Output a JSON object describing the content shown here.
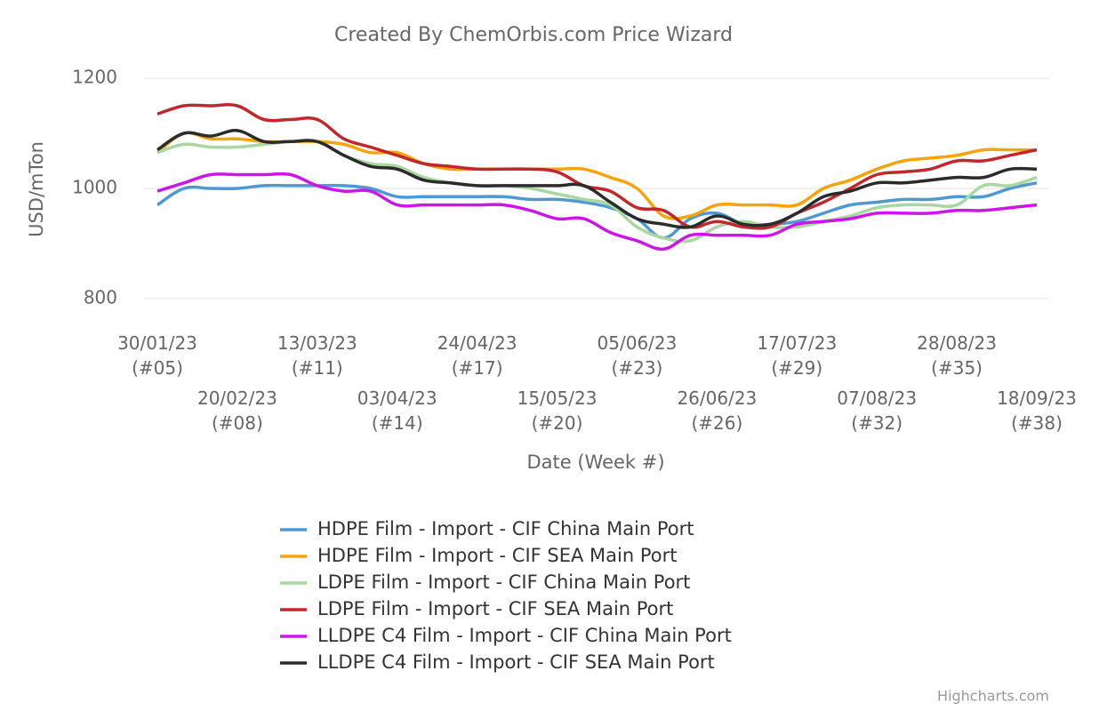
{
  "chart_data": {
    "type": "line",
    "title": "Created By ChemOrbis.com Price Wizard",
    "x_label": "Date (Week #)",
    "y_label": "USD/mTon",
    "credits": "Highcharts.com",
    "categories": [
      "30/01/23\n(#05)",
      null,
      null,
      "20/02/23\n(#08)",
      null,
      null,
      "13/03/23\n(#11)",
      null,
      null,
      "03/04/23\n(#14)",
      null,
      null,
      "24/04/23\n(#17)",
      null,
      null,
      "15/05/23\n(#20)",
      null,
      null,
      "05/06/23\n(#23)",
      null,
      null,
      "26/06/23\n(#26)",
      null,
      null,
      "17/07/23\n(#29)",
      null,
      null,
      "07/08/23\n(#32)",
      null,
      null,
      "28/08/23\n(#35)",
      null,
      null,
      "18/09/23\n(#38)"
    ],
    "ylim": [
      750,
      1200
    ],
    "yticks": [
      800,
      1000,
      1200
    ],
    "grid": true,
    "legend": "bottom",
    "series": [
      {
        "name": "HDPE Film - Import - CIF China Main Port",
        "color": "#4f98d3",
        "values": [
          970,
          1000,
          1000,
          1000,
          1005,
          1005,
          1005,
          1005,
          1000,
          985,
          985,
          985,
          985,
          985,
          980,
          980,
          975,
          965,
          945,
          910,
          945,
          955,
          935,
          935,
          940,
          955,
          970,
          975,
          980,
          980,
          985,
          985,
          1000,
          1010
        ]
      },
      {
        "name": "HDPE Film - Import - CIF SEA Main Port",
        "color": "#f5a40c",
        "values": [
          1065,
          1100,
          1090,
          1090,
          1085,
          1085,
          1085,
          1080,
          1065,
          1065,
          1045,
          1035,
          1035,
          1035,
          1035,
          1035,
          1035,
          1020,
          1000,
          950,
          950,
          970,
          970,
          970,
          970,
          1000,
          1015,
          1035,
          1050,
          1055,
          1060,
          1070,
          1070,
          1070
        ]
      },
      {
        "name": "LDPE Film - Import - CIF China Main Port",
        "color": "#a8d8a0",
        "values": [
          1065,
          1080,
          1075,
          1075,
          1080,
          1085,
          1085,
          1060,
          1045,
          1040,
          1020,
          1010,
          1005,
          1005,
          1000,
          990,
          980,
          970,
          930,
          910,
          905,
          930,
          940,
          930,
          930,
          940,
          950,
          965,
          970,
          970,
          970,
          1005,
          1005,
          1020
        ]
      },
      {
        "name": "LDPE Film - Import - CIF SEA Main Port",
        "color": "#c0282d",
        "values": [
          1135,
          1150,
          1150,
          1150,
          1125,
          1125,
          1125,
          1090,
          1075,
          1060,
          1045,
          1040,
          1035,
          1035,
          1035,
          1030,
          1005,
          995,
          965,
          960,
          930,
          940,
          930,
          930,
          955,
          975,
          1000,
          1025,
          1030,
          1035,
          1050,
          1050,
          1060,
          1070
        ]
      },
      {
        "name": "LLDPE C4 Film - Import - CIF China Main Port",
        "color": "#cc16e8",
        "values": [
          995,
          1010,
          1025,
          1025,
          1025,
          1025,
          1005,
          995,
          995,
          970,
          970,
          970,
          970,
          970,
          960,
          945,
          945,
          920,
          905,
          890,
          915,
          915,
          915,
          915,
          935,
          940,
          945,
          955,
          955,
          955,
          960,
          960,
          965,
          970
        ]
      },
      {
        "name": "LLDPE C4 Film - Import - CIF SEA Main Port",
        "color": "#2b2b2b",
        "values": [
          1070,
          1100,
          1095,
          1105,
          1085,
          1085,
          1085,
          1060,
          1040,
          1035,
          1015,
          1010,
          1005,
          1005,
          1005,
          1005,
          1005,
          975,
          945,
          935,
          930,
          950,
          935,
          935,
          955,
          985,
          995,
          1010,
          1010,
          1015,
          1020,
          1020,
          1035,
          1035
        ]
      }
    ]
  }
}
